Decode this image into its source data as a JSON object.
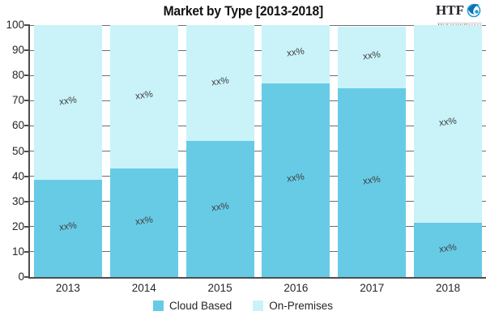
{
  "title": "Market by Type [2013-2018]",
  "logo": {
    "brand": "HTF",
    "tagline": "Market Intelligence",
    "icon": "globe-swoosh-icon",
    "icon_color": "#1b9cd8",
    "tagline_color": "#9c2f23"
  },
  "chart_data": {
    "type": "bar",
    "stacked": true,
    "title": "Market by Type [2013-2018]",
    "xlabel": "",
    "ylabel": "",
    "categories": [
      "2013",
      "2014",
      "2015",
      "2016",
      "2017",
      "2018"
    ],
    "series": [
      {
        "name": "Cloud Based",
        "color": "#67CBE6",
        "values": [
          38.5,
          43,
          54,
          77,
          75,
          21.5
        ],
        "data_labels": [
          "xx%",
          "xx%",
          "xx%",
          "xx%",
          "xx%",
          "xx%"
        ]
      },
      {
        "name": "On-Premises",
        "color": "#C9F3F9",
        "values": [
          61.5,
          57,
          46,
          23,
          24.5,
          78.5
        ],
        "data_labels": [
          "xx%",
          "xx%",
          "xx%",
          "xx%",
          "xx%",
          "xx%"
        ]
      }
    ],
    "ylim": [
      0,
      100
    ],
    "yticks": [
      0,
      10,
      20,
      30,
      40,
      50,
      60,
      70,
      80,
      90,
      100
    ],
    "grid": "horizontal",
    "legend_position": "bottom",
    "axis_color": "#4d4d4d",
    "grid_color": "#6e6e6e",
    "label_color": "#3f3f3f",
    "tick_label_color": "#262626"
  },
  "legend": {
    "items": [
      {
        "label": "Cloud Based",
        "color": "#67CBE6"
      },
      {
        "label": "On-Premises",
        "color": "#C9F3F9"
      }
    ]
  }
}
